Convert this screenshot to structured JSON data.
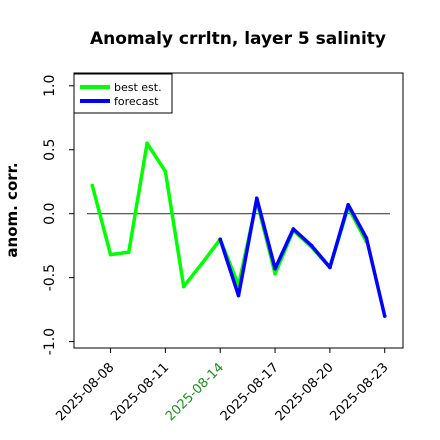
{
  "chart_data": {
    "type": "line",
    "title": "Anomaly crrltn, layer 5 salinity",
    "xlabel": "",
    "ylabel": "anom. corr.",
    "ylim": [
      -1.05,
      1.1
    ],
    "yticks": [
      -1.0,
      -0.5,
      0.0,
      0.5,
      1.0
    ],
    "ytick_labels": [
      "-1.0",
      "-0.5",
      "0.0",
      "0.5",
      "1.0"
    ],
    "xlim": [
      "2025-08-06",
      "2025-08-24"
    ],
    "xticks": [
      "2025-08-08",
      "2025-08-11",
      "2025-08-14",
      "2025-08-17",
      "2025-08-20",
      "2025-08-23"
    ],
    "xtick_colors": [
      "#000000",
      "#000000",
      "#228b22",
      "#000000",
      "#000000",
      "#000000"
    ],
    "reference_line": 0.0,
    "legend": {
      "placement": "top-left"
    },
    "series": [
      {
        "name": "best est.",
        "color": "#00ff00",
        "x": [
          "2025-08-07",
          "2025-08-08",
          "2025-08-09",
          "2025-08-10",
          "2025-08-11",
          "2025-08-12",
          "2025-08-13",
          "2025-08-14",
          "2025-08-15",
          "2025-08-16",
          "2025-08-17",
          "2025-08-18",
          "2025-08-19",
          "2025-08-20",
          "2025-08-21",
          "2025-08-22"
        ],
        "values": [
          0.22,
          -0.32,
          -0.3,
          0.55,
          0.33,
          -0.57,
          -0.39,
          -0.2,
          -0.56,
          0.1,
          -0.47,
          -0.13,
          -0.26,
          -0.42,
          0.05,
          -0.22
        ]
      },
      {
        "name": "forecast",
        "color": "#0000ff",
        "x": [
          "2025-08-14",
          "2025-08-15",
          "2025-08-16",
          "2025-08-17",
          "2025-08-18",
          "2025-08-19",
          "2025-08-20",
          "2025-08-21",
          "2025-08-22",
          "2025-08-23"
        ],
        "values": [
          -0.2,
          -0.64,
          0.12,
          -0.43,
          -0.12,
          -0.25,
          -0.42,
          0.07,
          -0.19,
          -0.8
        ]
      }
    ]
  }
}
